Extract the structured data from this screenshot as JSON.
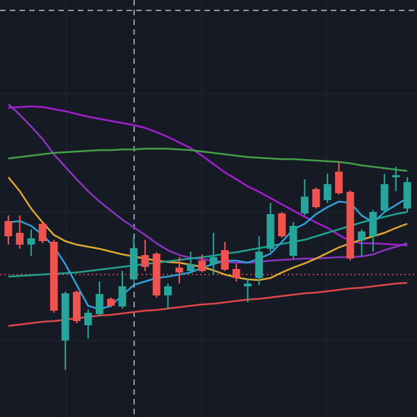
{
  "chart_data": {
    "type": "candlestick",
    "ylim": [
      0,
      600
    ],
    "up_color": "#26a69a",
    "down_color": "#ef5350",
    "grid": true,
    "price_line": 205,
    "candles": {
      "open": [
        282,
        265,
        248,
        278,
        252,
        110,
        180,
        132,
        148,
        170,
        159,
        198,
        233,
        235,
        175,
        215,
        210,
        225,
        220,
        240,
        213,
        188,
        200,
        242,
        293,
        232,
        293,
        328,
        312,
        353,
        324,
        254,
        260,
        297,
        345,
        300
      ],
      "high": [
        290,
        290,
        270,
        280,
        255,
        180,
        182,
        155,
        195,
        172,
        210,
        260,
        255,
        237,
        192,
        230,
        238,
        234,
        265,
        252,
        220,
        200,
        260,
        308,
        295,
        280,
        342,
        330,
        350,
        368,
        326,
        270,
        298,
        350,
        360,
        345
      ],
      "low": [
        248,
        242,
        232,
        250,
        150,
        68,
        135,
        113,
        145,
        158,
        156,
        195,
        210,
        172,
        155,
        192,
        207,
        208,
        205,
        210,
        195,
        165,
        190,
        238,
        258,
        228,
        290,
        300,
        308,
        320,
        225,
        232,
        238,
        294,
        325,
        295
      ],
      "close": [
        260,
        248,
        257,
        253,
        153,
        178,
        138,
        150,
        177,
        160,
        188,
        243,
        216,
        175,
        188,
        208,
        220,
        210,
        230,
        212,
        200,
        192,
        238,
        292,
        260,
        275,
        317,
        302,
        335,
        322,
        228,
        267,
        295,
        335,
        348,
        338
      ]
    },
    "series": [
      {
        "color": "#a21ed0",
        "values": [
          445,
          446,
          447,
          446,
          443,
          440,
          436,
          432,
          429,
          426,
          423,
          420,
          416,
          410,
          403,
          395,
          387,
          376,
          364,
          352,
          342,
          332,
          324,
          315,
          306,
          297,
          288,
          280,
          272,
          262,
          253,
          250,
          250,
          249,
          248,
          247
        ]
      },
      {
        "color": "#8a35c0",
        "values": [
          450,
          435,
          418,
          400,
          378,
          360,
          342,
          325,
          310,
          297,
          284,
          273,
          262,
          250,
          240,
          233,
          229,
          227,
          225,
          223,
          222,
          222,
          223,
          225,
          226,
          227,
          228,
          228,
          229,
          230,
          230,
          231,
          234,
          240,
          245,
          250
        ]
      },
      {
        "color": "#43a047",
        "values": [
          372,
          374,
          376,
          378,
          380,
          381,
          382,
          383,
          384,
          384,
          385,
          385,
          386,
          386,
          386,
          385,
          384,
          382,
          380,
          378,
          376,
          374,
          373,
          372,
          371,
          371,
          370,
          369,
          368,
          367,
          365,
          362,
          360,
          358,
          356,
          354
        ]
      },
      {
        "color": "#e0a82e",
        "values": [
          345,
          325,
          300,
          280,
          262,
          253,
          248,
          245,
          242,
          238,
          234,
          231,
          228,
          225,
          223,
          222,
          219,
          216,
          211,
          205,
          201,
          198,
          197,
          200,
          208,
          215,
          221,
          228,
          236,
          244,
          250,
          255,
          260,
          265,
          272,
          278
        ]
      },
      {
        "color": "#1fa38d",
        "values": [
          202,
          203,
          204,
          205,
          206,
          207,
          208,
          210,
          212,
          214,
          216,
          218,
          220,
          222,
          224,
          226,
          228,
          230,
          232,
          235,
          237,
          240,
          243,
          246,
          249,
          252,
          255,
          260,
          265,
          270,
          275,
          280,
          284,
          288,
          292,
          295
        ]
      },
      {
        "color": "#2f9fd8",
        "values": [
          280,
          282,
          275,
          262,
          245,
          220,
          190,
          160,
          155,
          160,
          175,
          190,
          195,
          200,
          202,
          205,
          208,
          215,
          220,
          225,
          225,
          222,
          228,
          235,
          252,
          270,
          278,
          292,
          302,
          310,
          308,
          290,
          280,
          295,
          305,
          315
        ]
      },
      {
        "color": "#e04848",
        "values": [
          131,
          133,
          135,
          137,
          138,
          140,
          142,
          144,
          146,
          147,
          149,
          151,
          153,
          154,
          156,
          158,
          160,
          162,
          163,
          165,
          167,
          169,
          170,
          172,
          174,
          176,
          178,
          179,
          181,
          183,
          185,
          186,
          188,
          190,
          192,
          193
        ]
      }
    ]
  }
}
